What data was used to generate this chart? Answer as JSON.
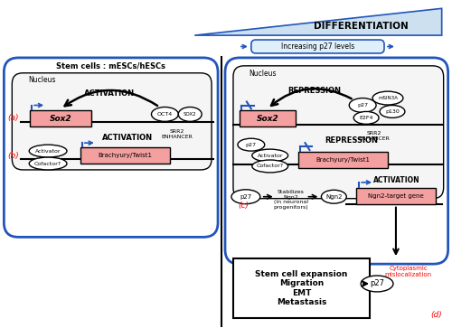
{
  "title_differentiation": "DIFFERENTIATION",
  "title_p27": "Increasing p27 levels",
  "stem_cell_label": "Stem cells : mESCs/hESCs",
  "nucleus_label": "Nucleus",
  "activation_label": "ACTIVATION",
  "repression_label": "REPRESSION",
  "sox2_label": "Sox2",
  "srr2_label": "SRR2\nENHANCER",
  "brachyury_label": "Brachyury/Twist1",
  "activator_label": "Activator",
  "cofactor_label": "Cofactor?",
  "oct4_label": "OCT4",
  "sox2_small_label": "SOX2",
  "p27_label": "p27",
  "msin3a_label": "mSIN3A",
  "e2f4_label": "E2F4",
  "p130_label": "p130",
  "ngn2_label": "Ngn2",
  "ngn2_target_label": "Ngn2-target gene",
  "stabilizes_label": "Stabilizes\nNgn2\n(in neuronal\nprogenitors)",
  "stem_cell_box_label": "Stem cell expansion\nMigration\nEMT\nMetastasis",
  "cytoplasmic_label": "Cytoplasmic\nmislocalization",
  "label_a": "(a)",
  "label_b": "(b)",
  "label_c": "(c)",
  "label_d": "(d)",
  "bg_color": "#ffffff",
  "pink_color": "#f4a0a0",
  "blue_border": "#2255bb",
  "blue_arrow": "#2255bb",
  "black": "#000000",
  "white": "#ffffff",
  "light_blue_tri": "#cce0f0",
  "light_blue_box": "#e0f0fa",
  "nucleus_fill": "#f5f5f5"
}
